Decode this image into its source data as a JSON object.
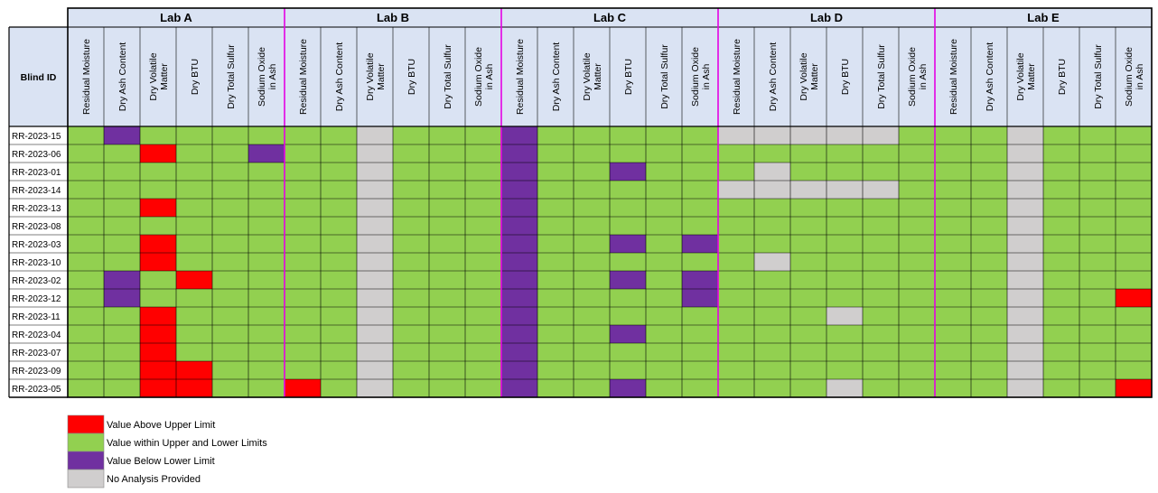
{
  "colors": {
    "above": "#ff0000",
    "within": "#92d050",
    "below": "#7030a0",
    "none": "#d0cece",
    "header_fill": "#dae3f3",
    "lab_divider": "#e400e4"
  },
  "chart_data": {
    "type": "heatmap",
    "row_header": "Blind ID",
    "labs": [
      "Lab A",
      "Lab B",
      "Lab C",
      "Lab D",
      "Lab E"
    ],
    "columns": [
      "Residual Moisture",
      "Dry Ash Content",
      "Dry Volatile Matter",
      "Dry BTU",
      "Dry Total Sulfur",
      "Sodium Oxide in Ash"
    ],
    "status_codes": {
      "W": "within",
      "A": "above",
      "B": "below",
      "N": "none"
    },
    "rows": [
      {
        "id": "RR-2023-15",
        "cells": "WBWWWW WWNWWW BWWWWW NNNNNW WWNWWW"
      },
      {
        "id": "RR-2023-06",
        "cells": "WWAWWB WWNWWW BWWWWW WWWWWW WWNWWW"
      },
      {
        "id": "RR-2023-01",
        "cells": "WWWWWW WWNWWW BWWBWW WNWWWW WWNWWW"
      },
      {
        "id": "RR-2023-14",
        "cells": "WWWWWW WWNWWW BWWWWW NNNNNW WWNWWW"
      },
      {
        "id": "RR-2023-13",
        "cells": "WWAWWW WWNWWW BWWWWW WWWWWW WWNWWW"
      },
      {
        "id": "RR-2023-08",
        "cells": "WWWWWW WWNWWW BWWWWW WWWWWW WWNWWW"
      },
      {
        "id": "RR-2023-03",
        "cells": "WWAWWW WWNWWW BWWBWB WWWWWW WWNWWW"
      },
      {
        "id": "RR-2023-10",
        "cells": "WWAWWW WWNWWW BWWWWW WNWWWW WWNWWW"
      },
      {
        "id": "RR-2023-02",
        "cells": "WBWAWW WWNWWW BWWBWB WWWWWW WWNWWW"
      },
      {
        "id": "RR-2023-12",
        "cells": "WBWWWW WWNWWW BWWWWB WWWWWW WWNWWA"
      },
      {
        "id": "RR-2023-11",
        "cells": "WWAWWW WWNWWW BWWWWW WWWNWW WWNWWW"
      },
      {
        "id": "RR-2023-04",
        "cells": "WWAWWW WWNWWW BWWBWW WWWWWW WWNWWW"
      },
      {
        "id": "RR-2023-07",
        "cells": "WWAWWW WWNWWW BWWWWW WWWWWW WWNWWW"
      },
      {
        "id": "RR-2023-09",
        "cells": "WWAAWW WWNWWW BWWWWW WWWWWW WWNWWW"
      },
      {
        "id": "RR-2023-05",
        "cells": "WWAAWW AWNWWW BWWBWW WWWNWW WWNWWA"
      }
    ],
    "legend": [
      {
        "status": "above",
        "label": "Value Above Upper Limit"
      },
      {
        "status": "within",
        "label": "Value within Upper and Lower Limits"
      },
      {
        "status": "below",
        "label": "Value Below Lower Limit"
      },
      {
        "status": "none",
        "label": "No Analysis Provided"
      }
    ]
  }
}
